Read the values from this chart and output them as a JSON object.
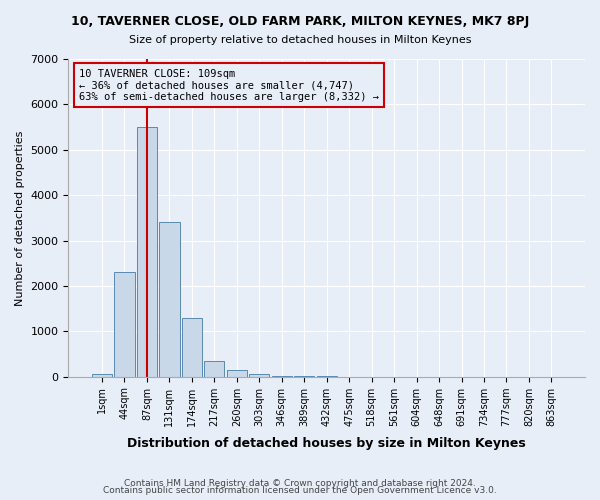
{
  "title": "10, TAVERNER CLOSE, OLD FARM PARK, MILTON KEYNES, MK7 8PJ",
  "subtitle": "Size of property relative to detached houses in Milton Keynes",
  "xlabel": "Distribution of detached houses by size in Milton Keynes",
  "ylabel": "Number of detached properties",
  "footer_line1": "Contains HM Land Registry data © Crown copyright and database right 2024.",
  "footer_line2": "Contains public sector information licensed under the Open Government Licence v3.0.",
  "bin_labels": [
    "1sqm",
    "44sqm",
    "87sqm",
    "131sqm",
    "174sqm",
    "217sqm",
    "260sqm",
    "303sqm",
    "346sqm",
    "389sqm",
    "432sqm",
    "475sqm",
    "518sqm",
    "561sqm",
    "604sqm",
    "648sqm",
    "691sqm",
    "734sqm",
    "777sqm",
    "820sqm",
    "863sqm"
  ],
  "bar_values": [
    50,
    2300,
    5500,
    3400,
    1300,
    350,
    150,
    50,
    20,
    10,
    5,
    2,
    1,
    0,
    0,
    0,
    0,
    0,
    0,
    0,
    0
  ],
  "bar_color": "#c8d8e8",
  "bar_edge_color": "#5a8ab0",
  "vline_x_index": 2,
  "annotation_text_line1": "10 TAVERNER CLOSE: 109sqm",
  "annotation_text_line2": "← 36% of detached houses are smaller (4,747)",
  "annotation_text_line3": "63% of semi-detached houses are larger (8,332) →",
  "vline_color": "#cc0000",
  "annotation_box_edge_color": "#cc0000",
  "background_color": "#e8eef8",
  "ylim": [
    0,
    7000
  ],
  "yticks": [
    0,
    1000,
    2000,
    3000,
    4000,
    5000,
    6000,
    7000
  ]
}
